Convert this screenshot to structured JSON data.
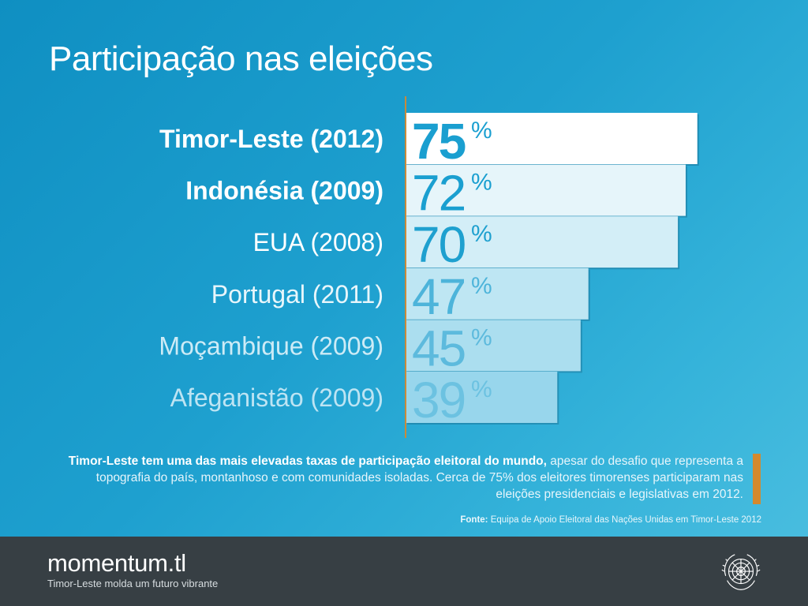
{
  "title": "Participação nas eleições",
  "chart_data": {
    "type": "bar",
    "orientation": "horizontal",
    "categories": [
      "Timor-Leste (2012)",
      "Indonésia (2009)",
      "EUA (2008)",
      "Portugal (2011)",
      "Moçambique (2009)",
      "Afeganistão (2009)"
    ],
    "values": [
      75,
      72,
      70,
      47,
      45,
      39
    ],
    "unit": "%",
    "xlim": [
      0,
      100
    ],
    "grid": false,
    "legend": "none"
  },
  "description": {
    "bold": "Timor-Leste tem uma das mais elevadas taxas de participação eleitoral do mundo,",
    "text": " apesar do desafio que representa a topografia do país, montanhoso e com comunidades isoladas. Cerca de 75% dos eleitores timorenses participaram nas eleições presidenciais e legislativas em 2012."
  },
  "source": {
    "label": "Fonte:",
    "text": " Equipa de Apoio Eleitoral das Nações Unidas em Timor-Leste 2012"
  },
  "footer": {
    "brand": "momentum.tl",
    "tagline": "Timor-Leste molda um futuro vibrante",
    "emblem_icon": "un-emblem-icon"
  },
  "colors": {
    "background": "#1ea0cf",
    "accent": "#d4892d",
    "footer": "#373f44",
    "number": "#1a9fd0"
  }
}
